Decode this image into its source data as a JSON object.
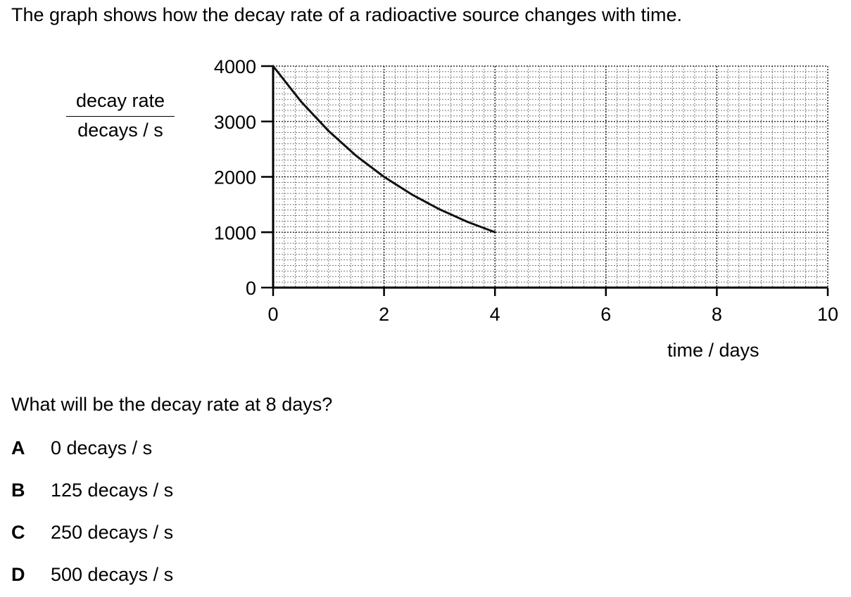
{
  "question": {
    "intro": "The graph shows how the decay rate of a radioactive source changes with time.",
    "prompt": "What will be the decay rate at 8 days?",
    "options": [
      {
        "letter": "A",
        "text": "0 decays / s"
      },
      {
        "letter": "B",
        "text": "125 decays / s"
      },
      {
        "letter": "C",
        "text": "250 decays / s"
      },
      {
        "letter": "D",
        "text": "500 decays / s"
      }
    ]
  },
  "chart_data": {
    "type": "line",
    "title": "",
    "xlabel": "time / days",
    "ylabel_numerator": "decay rate",
    "ylabel_denominator": "decays / s",
    "xlim": [
      0,
      10
    ],
    "ylim": [
      0,
      4000
    ],
    "x_ticks": [
      0,
      2,
      4,
      6,
      8,
      10
    ],
    "y_ticks": [
      0,
      1000,
      2000,
      3000,
      4000
    ],
    "grid": true,
    "series": [
      {
        "x": [
          0,
          0.5,
          1,
          1.5,
          2,
          2.5,
          3,
          3.5,
          4
        ],
        "y": [
          4000,
          3364,
          2828,
          2378,
          2000,
          1682,
          1414,
          1189,
          1000
        ]
      }
    ]
  }
}
